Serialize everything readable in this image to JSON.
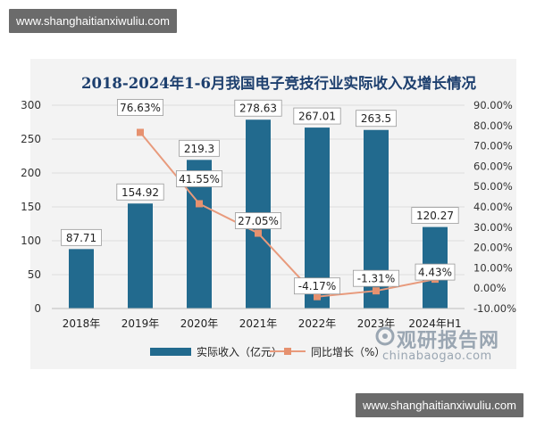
{
  "watermark_top": "www.shanghaitianxiwuliu.com",
  "watermark_bottom": "www.shanghaitianxiwuliu.com",
  "brand": {
    "name": "观研报告网",
    "url": "chinabaogao.com"
  },
  "colors": {
    "bar": "#226a8e",
    "line": "#e89a7c",
    "title": "#1d3f6e",
    "panel": "#f3f3f3",
    "background": "#ffffff"
  },
  "chart_data": {
    "type": "bar+line",
    "title": "2018-2024年1-6月我国电子竞技行业实际收入及增长情况",
    "categories": [
      "2018年",
      "2019年",
      "2020年",
      "2021年",
      "2022年",
      "2023年",
      "2024年H1"
    ],
    "series": [
      {
        "name": "实际收入（亿元）",
        "type": "bar",
        "axis": "left",
        "values": [
          87.71,
          154.92,
          219.3,
          278.63,
          267.01,
          263.5,
          120.27
        ],
        "labels": [
          "87.71",
          "154.92",
          "219.3",
          "278.63",
          "267.01",
          "263.5",
          "120.27"
        ]
      },
      {
        "name": "同比增长（%）",
        "type": "line",
        "axis": "right",
        "values": [
          null,
          76.63,
          41.55,
          27.05,
          -4.17,
          -1.31,
          4.43
        ],
        "labels": [
          "",
          "76.63%",
          "41.55%",
          "27.05%",
          "-4.17%",
          "-1.31%",
          "4.43%"
        ]
      }
    ],
    "left_axis": {
      "min": 0,
      "max": 300,
      "ticks": [
        "0",
        "50",
        "100",
        "150",
        "200",
        "250",
        "300"
      ]
    },
    "right_axis": {
      "min": -10,
      "max": 90,
      "ticks": [
        "-10.00%",
        "0.00%",
        "10.00%",
        "20.00%",
        "30.00%",
        "40.00%",
        "50.00%",
        "60.00%",
        "70.00%",
        "80.00%",
        "90.00%"
      ]
    },
    "grid": true,
    "legend": "bottom"
  }
}
